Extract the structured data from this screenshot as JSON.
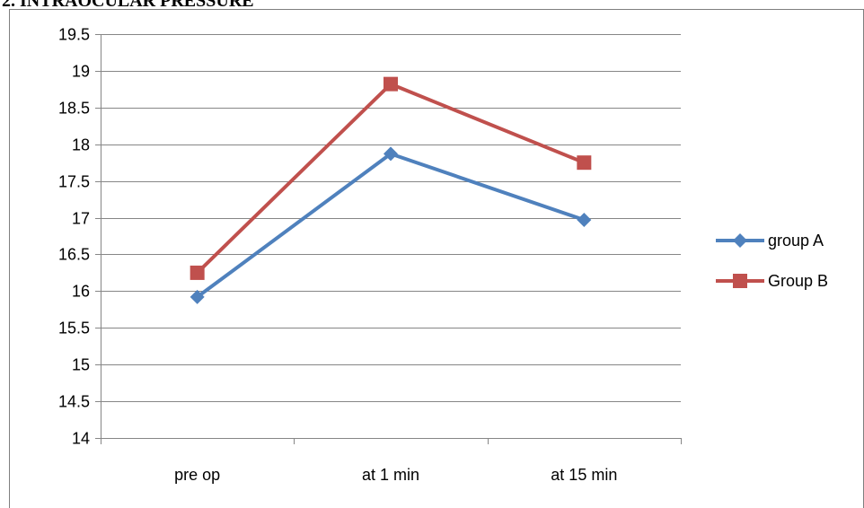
{
  "page_title": "2. INTRAOCULAR PRESSURE",
  "chart_data": {
    "type": "line",
    "title": "",
    "xlabel": "",
    "ylabel": "",
    "categories": [
      "pre op",
      "at 1 min",
      "at 15 min"
    ],
    "ylim": [
      14,
      19.5
    ],
    "y_ticks": [
      "14",
      "14.5",
      "15",
      "15.5",
      "16",
      "16.5",
      "17",
      "17.5",
      "18",
      "18.5",
      "19",
      "19.5"
    ],
    "grid": "horizontal",
    "legend_position": "right",
    "series": [
      {
        "name": "group A",
        "values": [
          15.92,
          17.87,
          16.97
        ],
        "color": "#4f81bd",
        "marker": "diamond"
      },
      {
        "name": "Group B",
        "values": [
          16.25,
          18.82,
          17.75
        ],
        "color": "#c0504d",
        "marker": "square"
      }
    ]
  }
}
